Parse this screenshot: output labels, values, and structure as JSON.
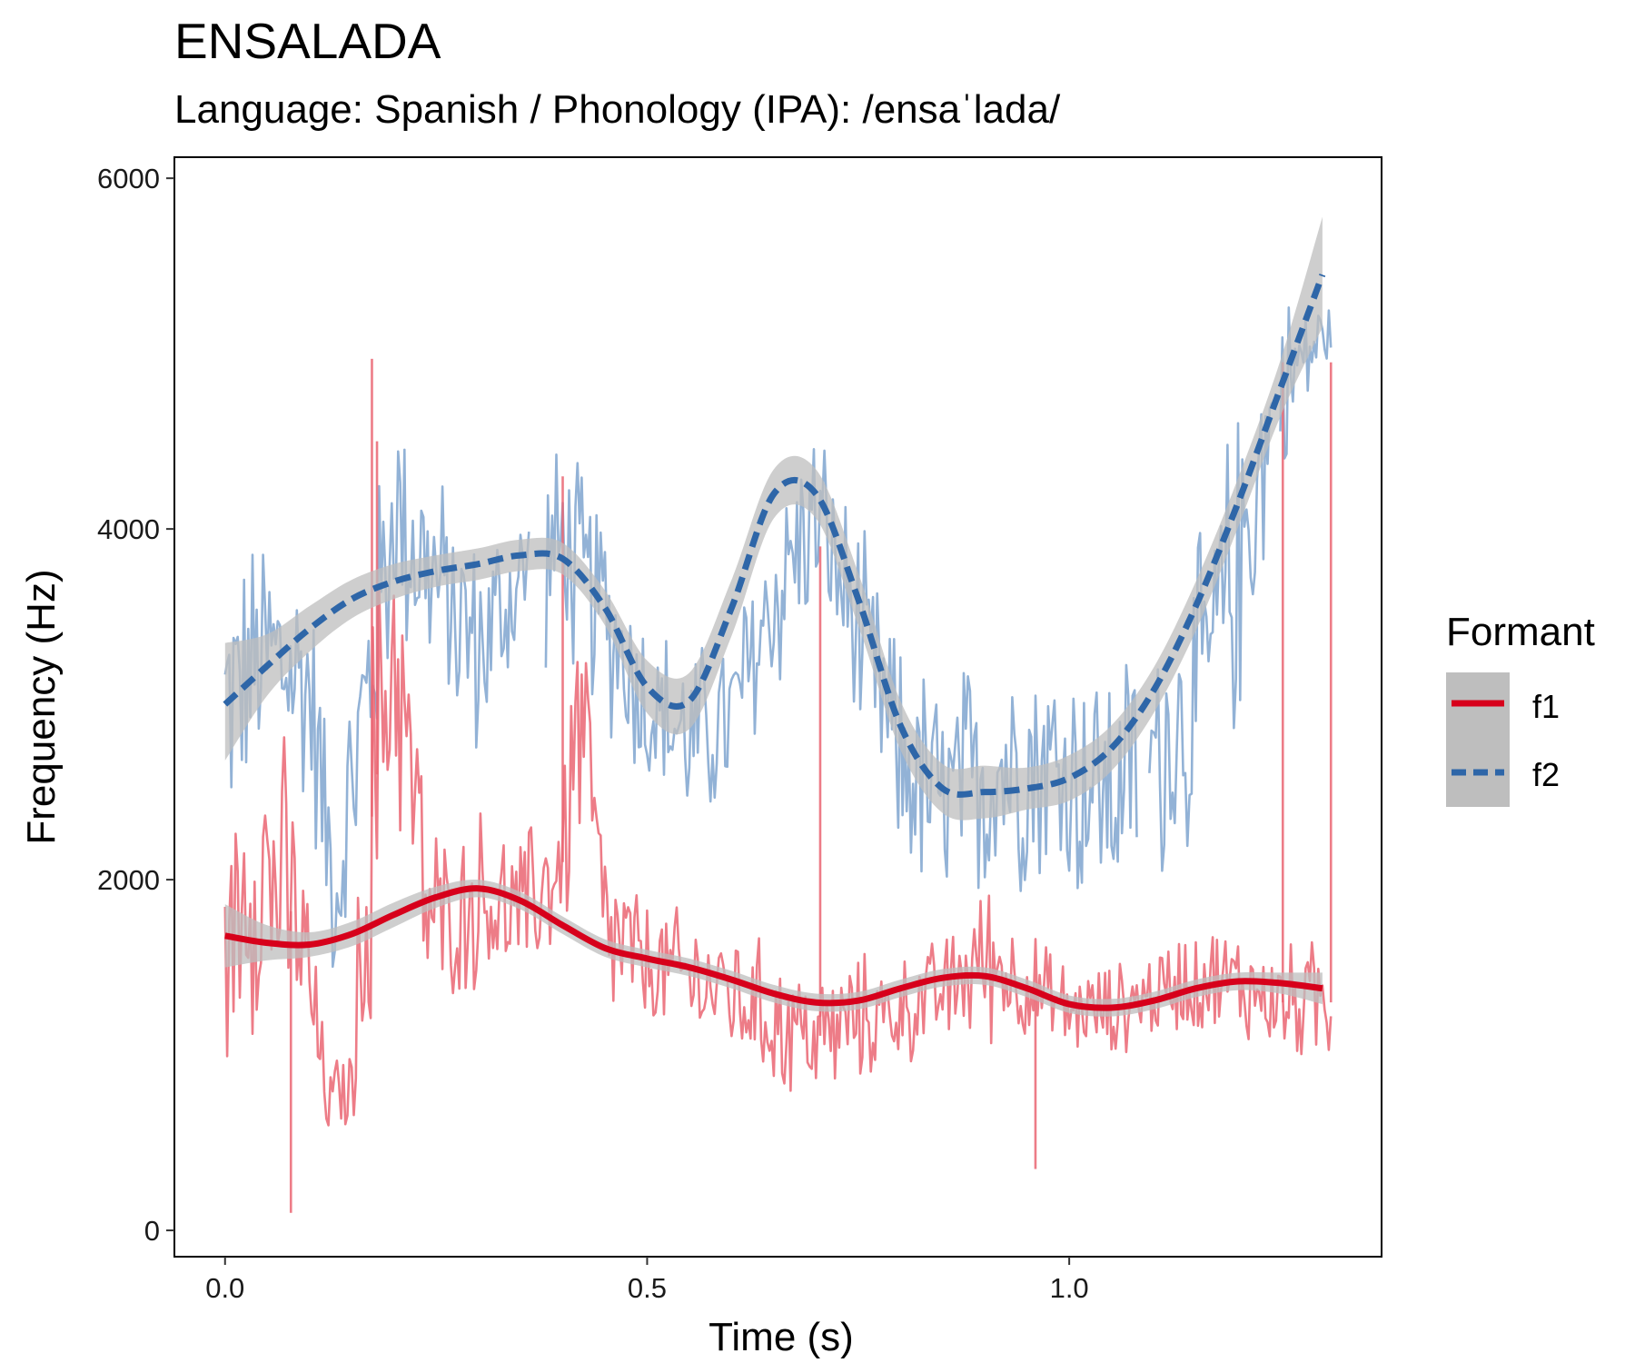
{
  "chart_data": {
    "type": "line",
    "title": "ENSALADA",
    "subtitle": "Language: Spanish / Phonology (IPA): /ensaˈlada/",
    "xlabel": "Time (s)",
    "ylabel": "Frequency (Hz)",
    "xlim": [
      -0.06,
      1.37
    ],
    "ylim": [
      -150,
      6120
    ],
    "x_ticks": [
      {
        "value": 0.0,
        "label": "0.0"
      },
      {
        "value": 0.5,
        "label": "0.5"
      },
      {
        "value": 1.0,
        "label": "1.0"
      }
    ],
    "y_ticks": [
      {
        "value": 0,
        "label": "0"
      },
      {
        "value": 2000,
        "label": "2000"
      },
      {
        "value": 4000,
        "label": "4000"
      },
      {
        "value": 6000,
        "label": "6000"
      }
    ],
    "grid": false,
    "legend": {
      "title": "Formant",
      "placement": "right",
      "entries": [
        {
          "label": "f1",
          "color": "#D7001B",
          "dash": "solid"
        },
        {
          "label": "f2",
          "color": "#2E66A8",
          "dash": "dashed"
        }
      ]
    },
    "colors": {
      "f1_raw": "#EA6572",
      "f2_raw": "#7FA4CF",
      "f1_smooth": "#D7001B",
      "f2_smooth": "#2E66A8",
      "ribbon": "#BEBEBE"
    },
    "raw_series": [
      {
        "name": "f1",
        "anchors": {
          "t": [
            0.0,
            0.03,
            0.06,
            0.09,
            0.12,
            0.15,
            0.17,
            0.2,
            0.24,
            0.27,
            0.3,
            0.35,
            0.4,
            0.42,
            0.45,
            0.5,
            0.55,
            0.6,
            0.65,
            0.7,
            0.75,
            0.8,
            0.85,
            0.9,
            0.95,
            1.0,
            1.05,
            1.1,
            1.15,
            1.2,
            1.25,
            1.3
          ],
          "center": [
            1500,
            2100,
            2000,
            1700,
            750,
            800,
            2200,
            3400,
            1800,
            1750,
            1900,
            1800,
            2100,
            3000,
            1700,
            1500,
            1450,
            1350,
            1200,
            1100,
            1200,
            1250,
            1350,
            1550,
            1400,
            1250,
            1250,
            1350,
            1450,
            1400,
            1300,
            1300
          ],
          "spread": [
            500,
            900,
            900,
            700,
            200,
            250,
            1200,
            900,
            600,
            400,
            500,
            400,
            500,
            900,
            500,
            350,
            350,
            350,
            400,
            350,
            350,
            300,
            300,
            450,
            300,
            250,
            250,
            250,
            300,
            300,
            300,
            350
          ]
        },
        "spikes": [
          {
            "t": 0.174,
            "value": 4970
          },
          {
            "t": 0.18,
            "value": 4500
          },
          {
            "t": 0.4,
            "value": 4300
          },
          {
            "t": 0.705,
            "value": 3900
          },
          {
            "t": 1.253,
            "value": 4950
          },
          {
            "t": 1.31,
            "value": 4950
          },
          {
            "t": 0.078,
            "value": 100
          },
          {
            "t": 0.96,
            "value": 350
          }
        ]
      },
      {
        "name": "f2",
        "anchors": {
          "t": [
            0.0,
            0.05,
            0.1,
            0.13,
            0.16,
            0.2,
            0.25,
            0.3,
            0.35,
            0.4,
            0.45,
            0.5,
            0.55,
            0.6,
            0.65,
            0.7,
            0.75,
            0.8,
            0.85,
            0.9,
            0.95,
            1.0,
            1.05,
            1.1,
            1.15,
            1.2,
            1.25,
            1.3
          ],
          "center": [
            3000,
            3300,
            3100,
            1900,
            2800,
            4100,
            3700,
            3300,
            3700,
            3900,
            3500,
            3000,
            2800,
            2900,
            3600,
            4100,
            3400,
            2700,
            2400,
            2600,
            2700,
            2600,
            2500,
            2700,
            3000,
            3800,
            4800,
            5100
          ],
          "spread": [
            700,
            700,
            700,
            500,
            800,
            700,
            600,
            600,
            500,
            600,
            600,
            500,
            500,
            500,
            600,
            500,
            600,
            600,
            700,
            700,
            700,
            700,
            700,
            700,
            800,
            900,
            500,
            200
          ]
        },
        "segments": [
          [
            0.0,
            0.36
          ],
          [
            0.38,
            1.08
          ],
          [
            1.095,
            1.24
          ],
          [
            1.25,
            1.31
          ]
        ]
      }
    ],
    "series": [
      {
        "name": "f1",
        "x": [
          0.0,
          0.05,
          0.1,
          0.15,
          0.2,
          0.25,
          0.3,
          0.35,
          0.4,
          0.45,
          0.5,
          0.55,
          0.6,
          0.65,
          0.7,
          0.75,
          0.8,
          0.85,
          0.9,
          0.95,
          1.0,
          1.05,
          1.1,
          1.15,
          1.2,
          1.25,
          1.3
        ],
        "y": [
          1680,
          1640,
          1630,
          1690,
          1800,
          1900,
          1950,
          1880,
          1740,
          1610,
          1550,
          1500,
          1430,
          1350,
          1300,
          1310,
          1380,
          1440,
          1450,
          1380,
          1290,
          1270,
          1310,
          1380,
          1420,
          1410,
          1380
        ],
        "ci_low": [
          1500,
          1540,
          1560,
          1620,
          1730,
          1840,
          1900,
          1830,
          1690,
          1560,
          1500,
          1450,
          1380,
          1300,
          1250,
          1260,
          1330,
          1390,
          1400,
          1330,
          1240,
          1220,
          1260,
          1330,
          1370,
          1350,
          1290
        ],
        "ci_high": [
          1860,
          1740,
          1700,
          1760,
          1870,
          1960,
          2000,
          1930,
          1790,
          1660,
          1600,
          1550,
          1480,
          1400,
          1350,
          1360,
          1430,
          1490,
          1500,
          1430,
          1340,
          1320,
          1360,
          1430,
          1470,
          1470,
          1470
        ]
      },
      {
        "name": "f2",
        "x": [
          0.0,
          0.05,
          0.1,
          0.15,
          0.2,
          0.25,
          0.3,
          0.35,
          0.4,
          0.45,
          0.5,
          0.55,
          0.6,
          0.65,
          0.7,
          0.75,
          0.8,
          0.85,
          0.9,
          0.95,
          1.0,
          1.05,
          1.1,
          1.15,
          1.2,
          1.25,
          1.3
        ],
        "y": [
          3000,
          3220,
          3430,
          3600,
          3700,
          3760,
          3800,
          3850,
          3830,
          3550,
          3100,
          3020,
          3550,
          4200,
          4200,
          3600,
          2880,
          2520,
          2500,
          2520,
          2580,
          2750,
          3080,
          3560,
          4150,
          4800,
          5450
        ],
        "ci_low": [
          2680,
          3050,
          3300,
          3490,
          3600,
          3670,
          3710,
          3760,
          3740,
          3450,
          2950,
          2860,
          3390,
          4060,
          4060,
          3450,
          2740,
          2380,
          2350,
          2400,
          2450,
          2620,
          2950,
          3420,
          4010,
          4640,
          5150
        ],
        "ci_high": [
          3350,
          3400,
          3560,
          3710,
          3800,
          3850,
          3890,
          3940,
          3920,
          3650,
          3250,
          3180,
          3710,
          4340,
          4340,
          3750,
          3020,
          2660,
          2650,
          2640,
          2710,
          2880,
          3210,
          3700,
          4290,
          4960,
          5780
        ]
      }
    ]
  }
}
